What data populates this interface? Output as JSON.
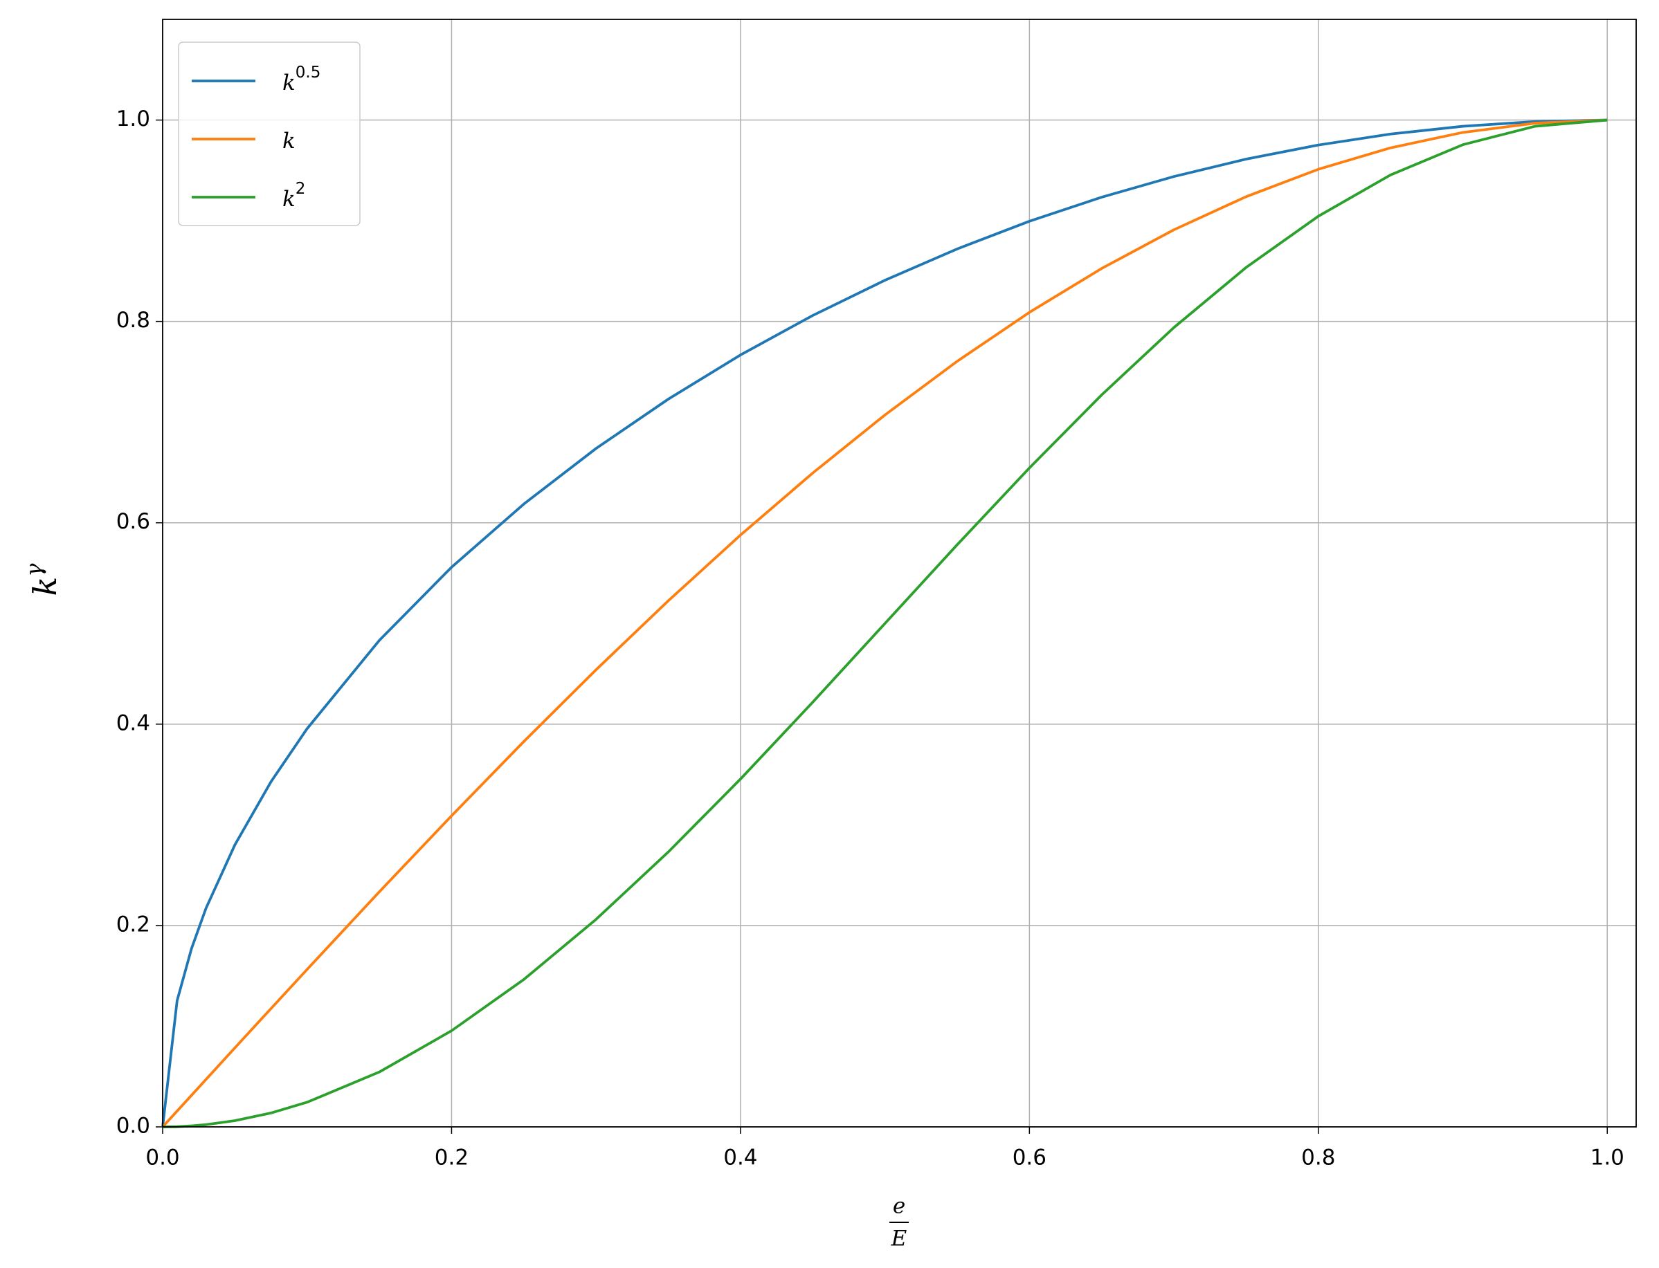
{
  "chart_data": {
    "type": "line",
    "y_label": "k",
    "y_label_exponent": "γ",
    "x_label_numerator": "e",
    "x_label_denominator": "E",
    "x": [
      0,
      0.01,
      0.02,
      0.03,
      0.05,
      0.075,
      0.1,
      0.15,
      0.2,
      0.25,
      0.3,
      0.35,
      0.4,
      0.45,
      0.5,
      0.55,
      0.6,
      0.65,
      0.7,
      0.75,
      0.8,
      0.85,
      0.9,
      0.95,
      1.0
    ],
    "series": [
      {
        "name": "k",
        "exponent": "0.5",
        "color": "#1f77b4",
        "values": [
          0,
          0.1253,
          0.1772,
          0.2171,
          0.2801,
          0.3428,
          0.3955,
          0.4832,
          0.5559,
          0.6186,
          0.6738,
          0.7228,
          0.7667,
          0.8059,
          0.8409,
          0.872,
          0.8995,
          0.9234,
          0.9439,
          0.9612,
          0.9752,
          0.9861,
          0.9938,
          0.9985,
          1
        ]
      },
      {
        "name": "k",
        "color": "#ff7f0e",
        "values": [
          0,
          0.0157,
          0.0314,
          0.0471,
          0.0785,
          0.1175,
          0.1564,
          0.2335,
          0.309,
          0.3827,
          0.454,
          0.5225,
          0.5878,
          0.6494,
          0.7071,
          0.7604,
          0.809,
          0.8526,
          0.891,
          0.9239,
          0.9511,
          0.9724,
          0.9877,
          0.9969,
          1
        ]
      },
      {
        "name": "k",
        "exponent": "2",
        "color": "#2ca02c",
        "values": [
          0,
          0.0002,
          0.001,
          0.0022,
          0.0062,
          0.0138,
          0.0245,
          0.0545,
          0.0955,
          0.1464,
          0.2061,
          0.273,
          0.3455,
          0.4218,
          0.5,
          0.5782,
          0.6545,
          0.727,
          0.7939,
          0.8536,
          0.9045,
          0.9455,
          0.9755,
          0.9938,
          1
        ]
      }
    ],
    "xlim": [
      0,
      1.02
    ],
    "ylim": [
      0,
      1.1
    ],
    "xticks": [
      {
        "value": 0,
        "label": "0.0"
      },
      0.2,
      0.4,
      0.6,
      0.8,
      {
        "value": 1,
        "label": "1.0"
      }
    ],
    "yticks": [
      {
        "value": 0,
        "label": "0.0"
      },
      0.2,
      0.4,
      0.6,
      0.8,
      {
        "value": 1,
        "label": "1.0"
      }
    ],
    "grid": true,
    "legend": "upper-left"
  }
}
